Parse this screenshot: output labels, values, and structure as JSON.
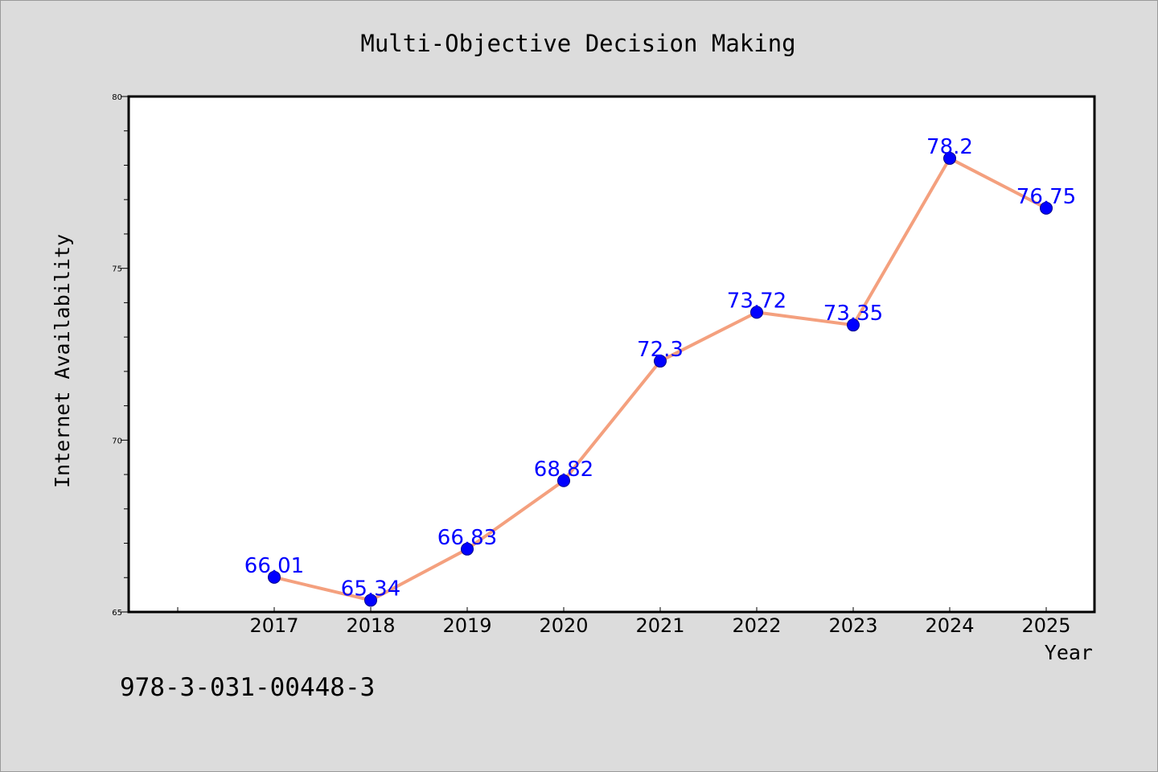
{
  "chart_data": {
    "type": "line",
    "title": "Multi-Objective Decision Making",
    "xlabel": "Year",
    "ylabel": "Internet Availability",
    "categories": [
      "2017",
      "2018",
      "2019",
      "2020",
      "2021",
      "2022",
      "2023",
      "2024",
      "2025"
    ],
    "x_tick_labels": [
      "2017",
      "2018",
      "2019",
      "2020",
      "2021",
      "2022",
      "2023",
      "2024",
      "2025"
    ],
    "series": [
      {
        "values": [
          66.01,
          65.34,
          66.83,
          68.82,
          72.3,
          73.72,
          73.35,
          78.2,
          76.75
        ],
        "data_labels": [
          "66.01",
          "65.34",
          "66.83",
          "68.82",
          "72.3",
          "73.72",
          "73.35",
          "78.2",
          "76.75"
        ]
      }
    ],
    "y_tick_labels": [
      "65",
      "70",
      "75",
      "80"
    ],
    "ylim": [
      65,
      80
    ],
    "grid": false,
    "legend": "none",
    "colors": {
      "line": "#f4a07e",
      "marker": "#0000ff",
      "label": "#0000ff",
      "axes_bg": "#ffffff",
      "figure_bg": "#dcdcdc"
    }
  },
  "footer_text": "978-3-031-00448-3"
}
